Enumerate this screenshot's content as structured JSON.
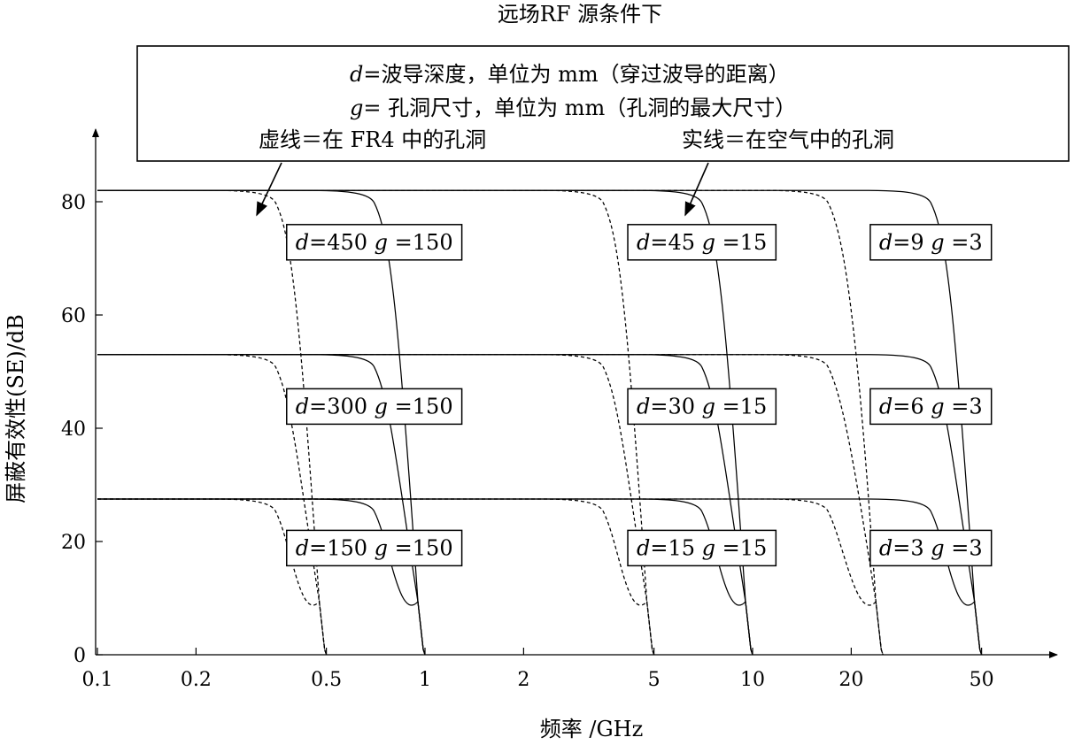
{
  "chart_data": {
    "type": "line",
    "title": "远场RF 源条件下",
    "xlabel": "频率 /GHz",
    "ylabel": "屏蔽有效性(SE)/dB",
    "x_scale": "log",
    "xlim": [
      0.1,
      70
    ],
    "ylim": [
      0,
      90
    ],
    "x_ticks": [
      0.1,
      0.2,
      0.5,
      1,
      2,
      5,
      10,
      20,
      50
    ],
    "x_tick_labels": [
      "0.1",
      "0.2",
      "0.5",
      "1",
      "2",
      "5",
      "10",
      "20",
      "50"
    ],
    "y_ticks": [
      0,
      20,
      40,
      60,
      80
    ],
    "y_tick_labels": [
      "0",
      "20",
      "40",
      "60",
      "80"
    ],
    "grid": false,
    "legend": {
      "line1_var": "d",
      "line1_text": "=波导深度，单位为 mm（穿过波导的距离）",
      "line2_var": "g",
      "line2_text": "= 孔洞尺寸，单位为 mm（孔洞的最大尺寸）",
      "dashed_label": "虚线＝在 FR4 中的孔洞",
      "solid_label": "实线＝在空气中的孔洞"
    },
    "series": [
      {
        "style": "solid",
        "d": 450,
        "g": 150,
        "plateau": 82,
        "knee": 0.7,
        "cutoff": 1.0
      },
      {
        "style": "dashed",
        "d": 450,
        "g": 150,
        "plateau": 82,
        "knee": 0.35,
        "cutoff": 0.5
      },
      {
        "style": "solid",
        "d": 300,
        "g": 150,
        "plateau": 53,
        "knee": 0.7,
        "cutoff": 1.0
      },
      {
        "style": "dashed",
        "d": 300,
        "g": 150,
        "plateau": 53,
        "knee": 0.35,
        "cutoff": 0.5
      },
      {
        "style": "solid",
        "d": 150,
        "g": 150,
        "plateau": 27.5,
        "knee": 0.7,
        "cutoff": 1.0
      },
      {
        "style": "dashed",
        "d": 150,
        "g": 150,
        "plateau": 27.5,
        "knee": 0.35,
        "cutoff": 0.5
      },
      {
        "style": "solid",
        "d": 45,
        "g": 15,
        "plateau": 82,
        "knee": 7,
        "cutoff": 10
      },
      {
        "style": "dashed",
        "d": 45,
        "g": 15,
        "plateau": 82,
        "knee": 3.5,
        "cutoff": 5
      },
      {
        "style": "solid",
        "d": 30,
        "g": 15,
        "plateau": 53,
        "knee": 7,
        "cutoff": 10
      },
      {
        "style": "dashed",
        "d": 30,
        "g": 15,
        "plateau": 53,
        "knee": 3.5,
        "cutoff": 5
      },
      {
        "style": "solid",
        "d": 15,
        "g": 15,
        "plateau": 27.5,
        "knee": 7,
        "cutoff": 10
      },
      {
        "style": "dashed",
        "d": 15,
        "g": 15,
        "plateau": 27.5,
        "knee": 3.5,
        "cutoff": 5
      },
      {
        "style": "solid",
        "d": 9,
        "g": 3,
        "plateau": 82,
        "knee": 35,
        "cutoff": 50
      },
      {
        "style": "dashed",
        "d": 9,
        "g": 3,
        "plateau": 82,
        "knee": 17,
        "cutoff": 25
      },
      {
        "style": "solid",
        "d": 6,
        "g": 3,
        "plateau": 53,
        "knee": 35,
        "cutoff": 50
      },
      {
        "style": "dashed",
        "d": 6,
        "g": 3,
        "plateau": 53,
        "knee": 17,
        "cutoff": 25
      },
      {
        "style": "solid",
        "d": 3,
        "g": 3,
        "plateau": 27.5,
        "knee": 35,
        "cutoff": 50
      },
      {
        "style": "dashed",
        "d": 3,
        "g": 3,
        "plateau": 27.5,
        "knee": 17,
        "cutoff": 25
      }
    ],
    "annotations": [
      {
        "d_text": "450",
        "g_text": "150",
        "x": 0.7,
        "y": 73
      },
      {
        "d_text": "300",
        "g_text": "150",
        "x": 0.7,
        "y": 44
      },
      {
        "d_text": "150",
        "g_text": "150",
        "x": 0.7,
        "y": 19
      },
      {
        "d_text": "45",
        "g_text": "15",
        "x": 7,
        "y": 73
      },
      {
        "d_text": "30",
        "g_text": "15",
        "x": 7,
        "y": 44
      },
      {
        "d_text": "15",
        "g_text": "15",
        "x": 7,
        "y": 19
      },
      {
        "d_text": "9",
        "g_text": "3",
        "x": 35,
        "y": 73
      },
      {
        "d_text": "6",
        "g_text": "3",
        "x": 35,
        "y": 44
      },
      {
        "d_text": "3",
        "g_text": "3",
        "x": 35,
        "y": 19
      }
    ],
    "arrows": [
      {
        "target": "dashed",
        "x": 0.32,
        "y": 77
      },
      {
        "target": "solid",
        "x": 6.2,
        "y": 77
      }
    ]
  }
}
